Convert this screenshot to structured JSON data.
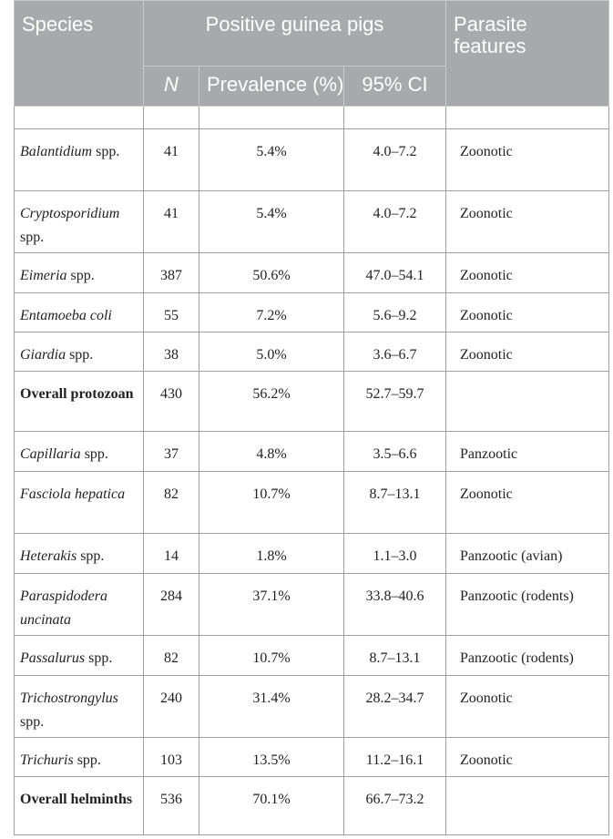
{
  "table": {
    "headers": {
      "species": "Species",
      "group": "Positive guinea pigs",
      "features": "Parasite features",
      "n": "N",
      "prevalence": "Prevalence (%)",
      "ci": "95% CI"
    },
    "rows": [
      {
        "species": "Balantidium",
        "suffix": "spp.",
        "n": 41,
        "prevalence": "5.4%",
        "ci": "4.0–7.2",
        "features": "Zoonotic"
      },
      {
        "species": "Cryptosporidium",
        "suffix": "spp.",
        "n": 41,
        "prevalence": "5.4%",
        "ci": "4.0–7.2",
        "features": "Zoonotic"
      },
      {
        "species": "Eimeria",
        "suffix": "spp.",
        "n": 387,
        "prevalence": "50.6%",
        "ci": "47.0–54.1",
        "features": "Zoonotic"
      },
      {
        "species": "Entamoeba coli",
        "n": 55,
        "prevalence": "7.2%",
        "ci": "5.6–9.2",
        "features": "Zoonotic"
      },
      {
        "species": "Giardia",
        "suffix": "spp.",
        "n": 38,
        "prevalence": "5.0%",
        "ci": "3.6–6.7",
        "features": "Zoonotic"
      },
      {
        "species": "Overall protozoan",
        "bold": true,
        "n": 430,
        "prevalence": "56.2%",
        "ci": "52.7–59.7"
      },
      {
        "species": "Capillaria",
        "suffix": "spp.",
        "n": 37,
        "prevalence": "4.8%",
        "ci": "3.5–6.6",
        "features": "Panzootic"
      },
      {
        "species": "Fasciola hepatica",
        "n": 82,
        "prevalence": "10.7%",
        "ci": "8.7–13.1",
        "features": "Zoonotic"
      },
      {
        "species": "Heterakis",
        "suffix": "spp.",
        "n": 14,
        "prevalence": "1.8%",
        "ci": "1.1–3.0",
        "features": "Panzootic (avian)"
      },
      {
        "species": "Paraspidodera uncinata",
        "n": 284,
        "prevalence": "37.1%",
        "ci": "33.8–40.6",
        "features": "Panzootic (rodents)"
      },
      {
        "species": "Passalurus",
        "suffix": "spp.",
        "n": 82,
        "prevalence": "10.7%",
        "ci": "8.7–13.1",
        "features": "Panzootic (rodents)"
      },
      {
        "species": "Trichostrongylus",
        "suffix": "spp.",
        "n": 240,
        "prevalence": "31.4%",
        "ci": "28.2–34.7",
        "features": "Zoonotic"
      },
      {
        "species": "Trichuris",
        "suffix": "spp.",
        "n": 103,
        "prevalence": "13.5%",
        "ci": "11.2–16.1",
        "features": "Zoonotic"
      },
      {
        "species": "Overall helminths",
        "bold": true,
        "n": 536,
        "prevalence": "70.1%",
        "ci": "66.7–73.2"
      }
    ]
  }
}
